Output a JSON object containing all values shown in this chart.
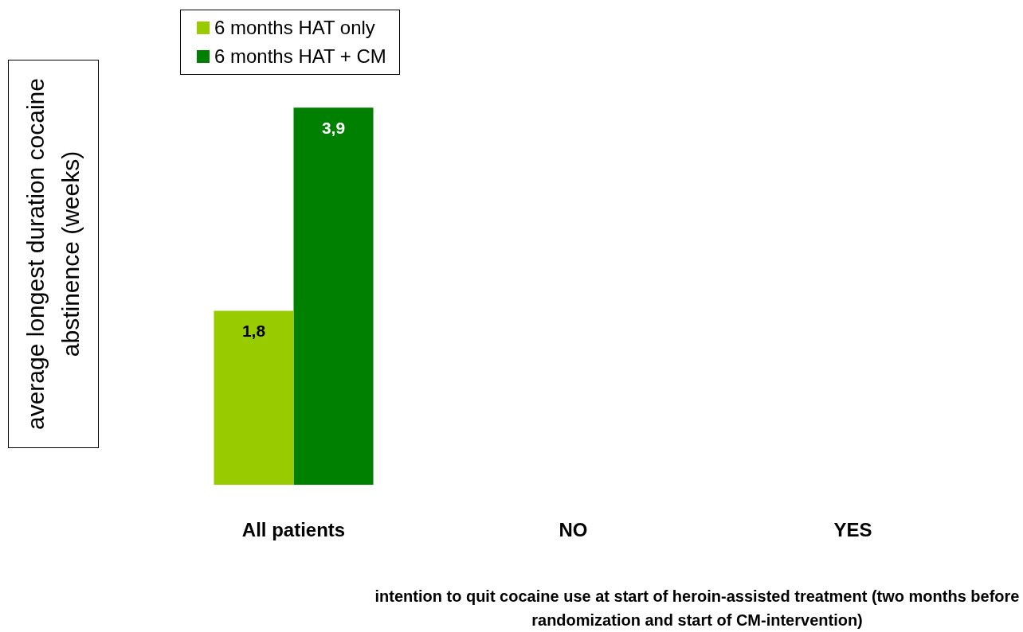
{
  "chart_data": {
    "type": "bar",
    "categories": [
      "All patients",
      "NO",
      "YES"
    ],
    "ylabel": "average longest duration cocaine abstinence (weeks)",
    "xlabel": "intention to quit cocaine use at start of heroin-assisted treatment (two months before randomization and start of CM-intervention)",
    "series": [
      {
        "name": "6 months HAT only",
        "color": "#99cc00",
        "values": [
          1.8,
          null,
          null
        ],
        "value_labels": [
          "1,8",
          null,
          null
        ]
      },
      {
        "name": "6 months HAT + CM",
        "color": "#008000",
        "values": [
          3.9,
          null,
          null
        ],
        "value_labels": [
          "3,9",
          null,
          null
        ]
      }
    ],
    "legend": "top left",
    "grid": false
  }
}
